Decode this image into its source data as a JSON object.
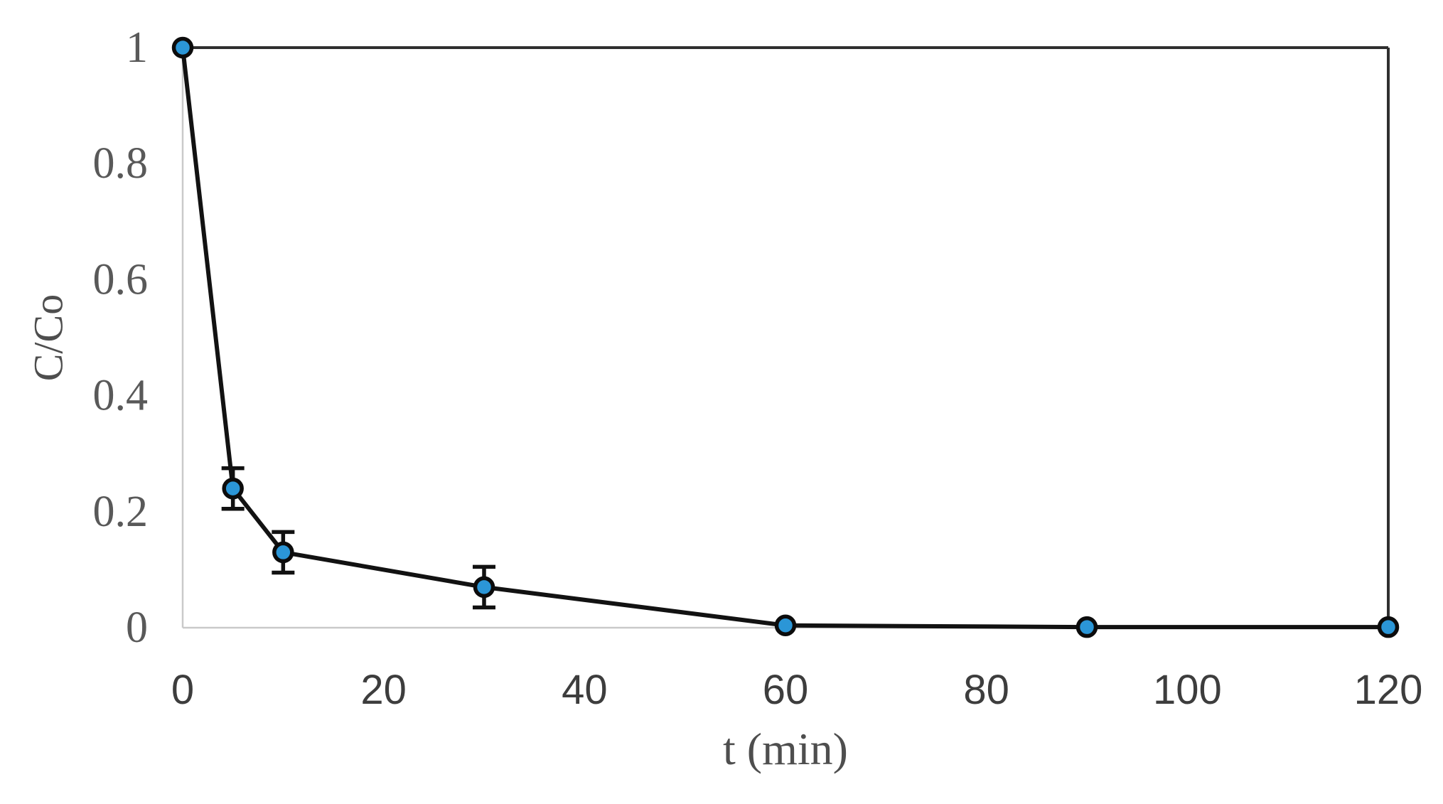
{
  "page": {
    "background_color": "#ffffff"
  },
  "chart_data": {
    "type": "line",
    "title": "",
    "xlabel": "t (min)",
    "ylabel": "C/Co",
    "series": [
      {
        "name": "C/Co",
        "x": [
          0,
          5,
          10,
          30,
          60,
          90,
          120
        ],
        "y": [
          1,
          0.24,
          0.13,
          0.07,
          0.004,
          0.001,
          0.001
        ],
        "y_error": [
          0,
          0.035,
          0.035,
          0.035,
          0,
          0,
          0
        ]
      }
    ],
    "xlim": [
      0,
      120
    ],
    "ylim": [
      0,
      1
    ],
    "x_tick_values": [
      0,
      20,
      40,
      60,
      80,
      100,
      120
    ],
    "x_tick_labels": [
      "0",
      "20",
      "40",
      "60",
      "80",
      "100",
      "120"
    ],
    "y_tick_values": [
      1,
      0.8,
      0.6,
      0.4,
      0.2,
      0
    ],
    "y_tick_labels": [
      "1",
      "0.8",
      "0.6",
      "0.4",
      "0.2",
      "0"
    ],
    "grid": false,
    "legend": null,
    "frame_sides": [
      "top",
      "right"
    ],
    "marker_shape": "circle",
    "colors": {
      "marker_fill": "#2B96D7",
      "marker_stroke": "#0c0c0c",
      "series_line": "#121212",
      "error_bar": "#111111",
      "plot_frame": "#2f2f2f",
      "axis_line": "#c9c9c9",
      "y_tick_label": "#595959",
      "x_tick_label": "#3d3d3d",
      "axis_title": "#4e4e4e",
      "background": "#ffffff"
    }
  }
}
